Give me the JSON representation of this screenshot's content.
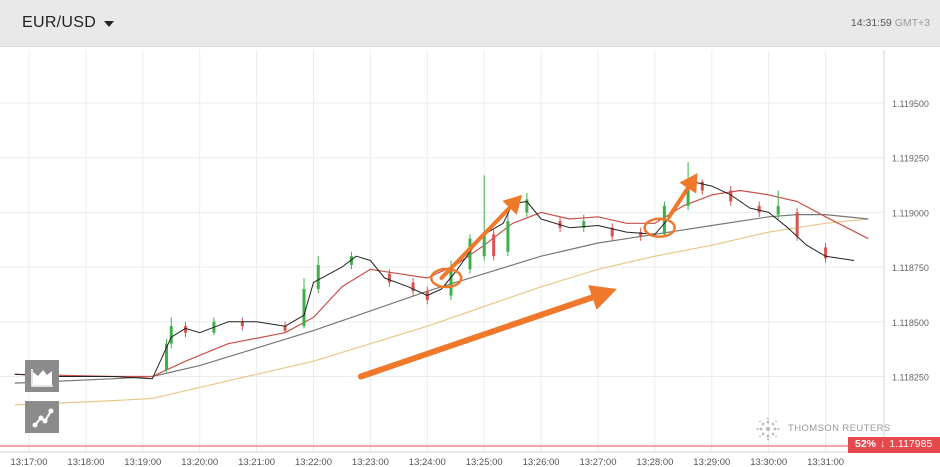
{
  "header": {
    "symbol": "EUR/USD",
    "time": "14:31:59",
    "timezone": "GMT+3"
  },
  "watermark": "THOMSON REUTERS",
  "price_tag": {
    "percent": "52%",
    "arrow": "↓",
    "price": "1.117985"
  },
  "toolbar": {
    "chart_type_icon": "area-chart-icon",
    "indicators_icon": "indicators-icon"
  },
  "colors": {
    "candle_up": "#3cb04a",
    "candle_down": "#d9534f",
    "price_line": "#222222",
    "ma_fast": "#c9514c",
    "ma_mid": "#777777",
    "ma_slow": "#e6c98a",
    "annotation": "#f0782b",
    "last_price_line": "#e5484d"
  },
  "chart_data": {
    "type": "line",
    "x_axis": {
      "ticks": [
        "13:17:00",
        "13:18:00",
        "13:19:00",
        "13:20:00",
        "13:21:00",
        "13:22:00",
        "13:23:00",
        "13:24:00",
        "13:25:00",
        "13:26:00",
        "13:27:00",
        "13:28:00",
        "13:29:00",
        "13:30:00",
        "13:31:00"
      ]
    },
    "y_axis": {
      "ticks": [
        "1.119500",
        "1.119250",
        "1.119000",
        "1.118750",
        "1.118500",
        "1.118250"
      ],
      "range": [
        1.11795,
        1.11977
      ],
      "side": "right"
    },
    "grid": true,
    "last_price": 1.117985,
    "series": [
      {
        "role": "price",
        "x": [
          "13:16:45",
          "13:17:30",
          "13:18:30",
          "13:19:10",
          "13:19:30",
          "13:19:45",
          "13:20:00",
          "13:20:30",
          "13:21:00",
          "13:21:30",
          "13:21:50",
          "13:22:00",
          "13:22:30",
          "13:22:45",
          "13:23:00",
          "13:23:15",
          "13:23:40",
          "13:24:00",
          "13:24:15",
          "13:24:30",
          "13:24:50",
          "13:25:00",
          "13:25:20",
          "13:25:30",
          "13:25:45",
          "13:26:00",
          "13:26:30",
          "13:27:00",
          "13:27:30",
          "13:28:00",
          "13:28:20",
          "13:28:40",
          "13:29:00",
          "13:29:20",
          "13:29:40",
          "13:30:00",
          "13:30:20",
          "13:30:40",
          "13:31:00",
          "13:31:30"
        ],
        "y": [
          1.11826,
          1.11825,
          1.11825,
          1.11824,
          1.11843,
          1.11847,
          1.11845,
          1.1185,
          1.1185,
          1.11848,
          1.11853,
          1.11868,
          1.11875,
          1.1188,
          1.11878,
          1.1187,
          1.11866,
          1.11862,
          1.11865,
          1.11873,
          1.11885,
          1.1189,
          1.11895,
          1.11904,
          1.11905,
          1.11897,
          1.11893,
          1.11894,
          1.11891,
          1.1189,
          1.119,
          1.11914,
          1.11912,
          1.11908,
          1.11902,
          1.119,
          1.11893,
          1.11885,
          1.1188,
          1.11878
        ]
      },
      {
        "role": "ma-fast",
        "x": [
          "13:16:45",
          "13:18:30",
          "13:19:10",
          "13:19:45",
          "13:20:30",
          "13:21:30",
          "13:22:00",
          "13:22:30",
          "13:23:00",
          "13:23:30",
          "13:24:00",
          "13:24:30",
          "13:25:00",
          "13:25:30",
          "13:26:00",
          "13:26:30",
          "13:27:00",
          "13:27:30",
          "13:28:00",
          "13:28:30",
          "13:29:00",
          "13:29:30",
          "13:30:00",
          "13:30:30",
          "13:31:00",
          "13:31:45"
        ],
        "y": [
          1.11826,
          1.11825,
          1.11825,
          1.11832,
          1.1184,
          1.11845,
          1.11852,
          1.11866,
          1.11874,
          1.11872,
          1.1187,
          1.11876,
          1.11885,
          1.11895,
          1.119,
          1.11897,
          1.11898,
          1.11895,
          1.11895,
          1.11903,
          1.11908,
          1.1191,
          1.11908,
          1.11905,
          1.11898,
          1.11888
        ]
      },
      {
        "role": "ma-mid",
        "x": [
          "13:16:45",
          "13:18:30",
          "13:19:10",
          "13:20:00",
          "13:21:00",
          "13:22:00",
          "13:23:00",
          "13:24:00",
          "13:25:00",
          "13:26:00",
          "13:27:00",
          "13:28:00",
          "13:29:00",
          "13:30:00",
          "13:30:30",
          "13:31:00",
          "13:31:45"
        ],
        "y": [
          1.11822,
          1.11824,
          1.11825,
          1.1183,
          1.11838,
          1.11846,
          1.11855,
          1.11864,
          1.11872,
          1.1188,
          1.11886,
          1.1189,
          1.11894,
          1.11898,
          1.11899,
          1.11899,
          1.11897
        ]
      },
      {
        "role": "ma-slow",
        "x": [
          "13:16:45",
          "13:18:30",
          "13:19:10",
          "13:20:00",
          "13:21:00",
          "13:22:00",
          "13:23:00",
          "13:24:00",
          "13:25:00",
          "13:26:00",
          "13:27:00",
          "13:28:00",
          "13:29:00",
          "13:30:00",
          "13:30:30",
          "13:31:00",
          "13:31:45"
        ],
        "y": [
          1.11812,
          1.11814,
          1.11815,
          1.1182,
          1.11826,
          1.11832,
          1.1184,
          1.11848,
          1.11857,
          1.11866,
          1.11874,
          1.1188,
          1.11885,
          1.11891,
          1.11893,
          1.11895,
          1.11897
        ]
      }
    ],
    "candles": [
      {
        "x": "13:19:25",
        "open": 1.11828,
        "close": 1.1184,
        "high": 1.11842,
        "low": 1.11827
      },
      {
        "x": "13:19:30",
        "open": 1.1184,
        "close": 1.11848,
        "high": 1.11852,
        "low": 1.11838
      },
      {
        "x": "13:19:45",
        "open": 1.11848,
        "close": 1.11845,
        "high": 1.1185,
        "low": 1.11843
      },
      {
        "x": "13:20:15",
        "open": 1.11845,
        "close": 1.1185,
        "high": 1.11852,
        "low": 1.11844
      },
      {
        "x": "13:20:45",
        "open": 1.1185,
        "close": 1.11848,
        "high": 1.11852,
        "low": 1.11846
      },
      {
        "x": "13:21:30",
        "open": 1.11848,
        "close": 1.11846,
        "high": 1.1185,
        "low": 1.11845
      },
      {
        "x": "13:21:50",
        "open": 1.11848,
        "close": 1.11865,
        "high": 1.1187,
        "low": 1.11847
      },
      {
        "x": "13:22:05",
        "open": 1.11865,
        "close": 1.11876,
        "high": 1.1188,
        "low": 1.11863
      },
      {
        "x": "13:22:40",
        "open": 1.11876,
        "close": 1.1188,
        "high": 1.11882,
        "low": 1.11874
      },
      {
        "x": "13:23:20",
        "open": 1.11872,
        "close": 1.11868,
        "high": 1.11874,
        "low": 1.11866
      },
      {
        "x": "13:23:45",
        "open": 1.11868,
        "close": 1.11864,
        "high": 1.1187,
        "low": 1.11862
      },
      {
        "x": "13:24:00",
        "open": 1.11864,
        "close": 1.1186,
        "high": 1.11866,
        "low": 1.11858
      },
      {
        "x": "13:24:25",
        "open": 1.11862,
        "close": 1.11874,
        "high": 1.11878,
        "low": 1.1186
      },
      {
        "x": "13:24:45",
        "open": 1.11874,
        "close": 1.11888,
        "high": 1.1189,
        "low": 1.11872
      },
      {
        "x": "13:25:00",
        "open": 1.1188,
        "close": 1.1189,
        "high": 1.11917,
        "low": 1.11878
      },
      {
        "x": "13:25:10",
        "open": 1.1189,
        "close": 1.1188,
        "high": 1.11892,
        "low": 1.11878
      },
      {
        "x": "13:25:25",
        "open": 1.11882,
        "close": 1.11896,
        "high": 1.119,
        "low": 1.1188
      },
      {
        "x": "13:25:45",
        "open": 1.119,
        "close": 1.11906,
        "high": 1.11909,
        "low": 1.11898
      },
      {
        "x": "13:26:20",
        "open": 1.11896,
        "close": 1.11893,
        "high": 1.11898,
        "low": 1.11891
      },
      {
        "x": "13:26:45",
        "open": 1.11893,
        "close": 1.11896,
        "high": 1.11899,
        "low": 1.11891
      },
      {
        "x": "13:27:15",
        "open": 1.11893,
        "close": 1.11889,
        "high": 1.11895,
        "low": 1.11887
      },
      {
        "x": "13:27:45",
        "open": 1.11891,
        "close": 1.11889,
        "high": 1.11893,
        "low": 1.11887
      },
      {
        "x": "13:28:10",
        "open": 1.1189,
        "close": 1.11903,
        "high": 1.11905,
        "low": 1.11889
      },
      {
        "x": "13:28:35",
        "open": 1.11903,
        "close": 1.11914,
        "high": 1.11923,
        "low": 1.11901
      },
      {
        "x": "13:28:50",
        "open": 1.11914,
        "close": 1.1191,
        "high": 1.11915,
        "low": 1.11908
      },
      {
        "x": "13:29:20",
        "open": 1.1191,
        "close": 1.11905,
        "high": 1.11912,
        "low": 1.11903
      },
      {
        "x": "13:29:50",
        "open": 1.11903,
        "close": 1.119,
        "high": 1.11905,
        "low": 1.11898
      },
      {
        "x": "13:30:10",
        "open": 1.11899,
        "close": 1.11903,
        "high": 1.1191,
        "low": 1.11897
      },
      {
        "x": "13:30:30",
        "open": 1.119,
        "close": 1.11889,
        "high": 1.11902,
        "low": 1.11887
      },
      {
        "x": "13:31:00",
        "open": 1.11884,
        "close": 1.11879,
        "high": 1.11886,
        "low": 1.11877
      }
    ],
    "annotations": [
      {
        "kind": "arrow",
        "from": [
          "13:22:50",
          1.11825
        ],
        "to": [
          "13:27:20",
          1.11865
        ]
      },
      {
        "kind": "arrow",
        "from": [
          "13:24:15",
          1.1187
        ],
        "to": [
          "13:25:40",
          1.11908
        ]
      },
      {
        "kind": "arrow",
        "from": [
          "13:28:15",
          1.11898
        ],
        "to": [
          "13:28:45",
          1.11918
        ]
      },
      {
        "kind": "circle",
        "at": [
          "13:24:20",
          1.1187
        ]
      },
      {
        "kind": "circle",
        "at": [
          "13:28:05",
          1.11893
        ]
      }
    ]
  }
}
